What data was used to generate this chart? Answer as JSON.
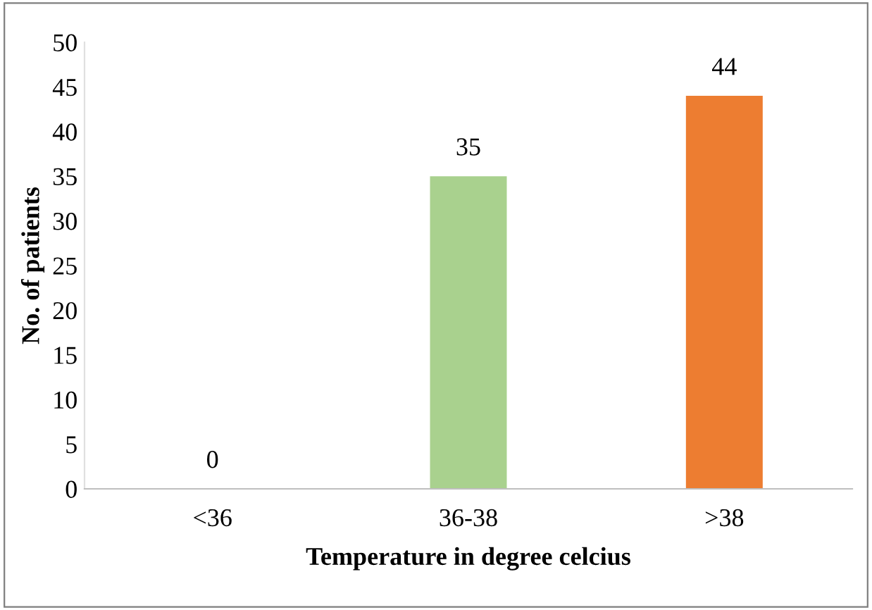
{
  "chart_data": {
    "type": "bar",
    "xlabel": "Temperature in degree celcius",
    "ylabel": "No. of patients",
    "categories": [
      "<36",
      "36-38",
      ">38"
    ],
    "values": [
      0,
      35,
      44
    ],
    "colors": [
      "#a9d18e",
      "#a9d18e",
      "#ed7d31"
    ],
    "ylim": [
      0,
      50
    ],
    "yticks": [
      0,
      5,
      10,
      15,
      20,
      25,
      30,
      35,
      40,
      45,
      50
    ],
    "data_labels": true,
    "grid": false,
    "legend": false
  }
}
